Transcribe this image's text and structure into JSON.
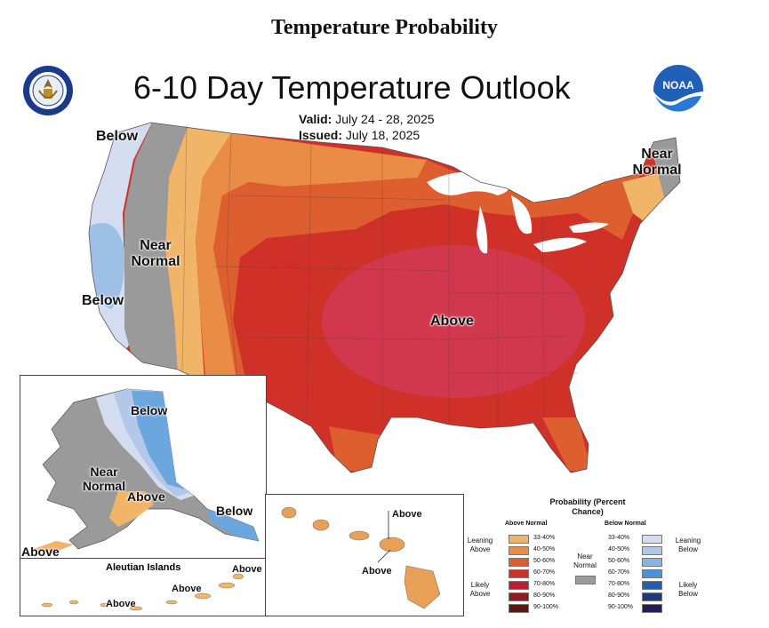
{
  "heading": "Temperature Probability",
  "title": "6-10 Day Temperature Outlook",
  "valid_label": "Valid:",
  "valid_value": "July 24 - 28, 2025",
  "issued_label": "Issued:",
  "issued_value": "July 18, 2025",
  "logos": {
    "left": "department-of-commerce-seal",
    "right": "NOAA"
  },
  "conus_labels": {
    "below_north": "Below",
    "below_west": "Below",
    "near_normal_west": "Near Normal",
    "near_normal_ne": "Near Normal",
    "above": "Above"
  },
  "alaska_labels": {
    "below": "Below",
    "near_normal": "Near Normal",
    "above_center": "Above",
    "below_se": "Below",
    "above_sw": "Above"
  },
  "aleutian": {
    "title": "Aleutian Islands",
    "above_1": "Above",
    "above_2": "Above",
    "above_3": "Above"
  },
  "hawaii": {
    "above_1": "Above",
    "above_2": "Above"
  },
  "legend": {
    "title": "Probability (Percent Chance)",
    "above_header": "Above Normal",
    "below_header": "Below Normal",
    "near_normal": "Near Normal",
    "leaning_above": "Leaning Above",
    "likely_above": "Likely Above",
    "leaning_below": "Leaning Below",
    "likely_below": "Likely Below",
    "above_bins": [
      "33-40%",
      "40-50%",
      "50-60%",
      "60-70%",
      "70-80%",
      "80-90%",
      "90-100%"
    ],
    "below_bins": [
      "33-40%",
      "40-50%",
      "50-60%",
      "60-70%",
      "70-80%",
      "80-90%",
      "90-100%"
    ],
    "colors": {
      "above": [
        "#f1b56a",
        "#e88c46",
        "#dd5e2f",
        "#cf3129",
        "#bf1f2b",
        "#8e1c20",
        "#5c1613"
      ],
      "below": [
        "#d4ddf0",
        "#b3c7e8",
        "#8ab3e2",
        "#4b92d8",
        "#2260a8",
        "#1e3a78",
        "#231c55"
      ],
      "near": "#9a9a9a"
    }
  }
}
